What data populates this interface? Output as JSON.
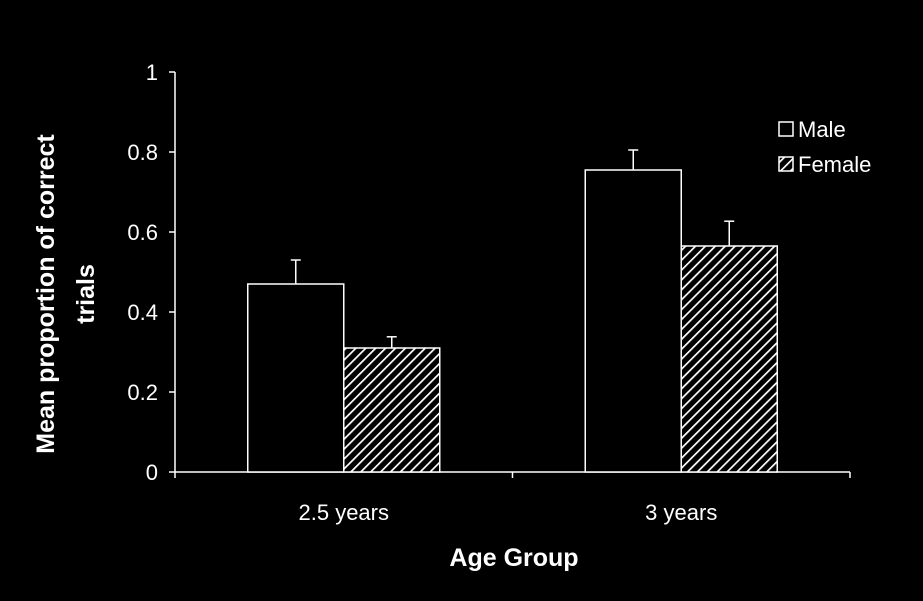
{
  "chart_data": {
    "type": "bar",
    "xlabel": "Age Group",
    "ylabel_lines": [
      "Mean proportion of correct",
      "trials"
    ],
    "categories": [
      "2.5 years",
      "3 years"
    ],
    "series": [
      {
        "name": "Male",
        "values": [
          0.47,
          0.755
        ],
        "errors": [
          0.06,
          0.05
        ]
      },
      {
        "name": "Female",
        "values": [
          0.31,
          0.565
        ],
        "errors": [
          0.028,
          0.062
        ]
      }
    ],
    "ylim": [
      0,
      1
    ],
    "yticks": [
      "0",
      "0.2",
      "0.4",
      "0.6",
      "0.8",
      "1"
    ],
    "grid": false,
    "legend_position": "top-right",
    "colors": {
      "background": "#000000",
      "axis": "#ffffff",
      "text": "#ffffff",
      "male_fill": "#000000",
      "female_hatch": "#ffffff"
    }
  }
}
